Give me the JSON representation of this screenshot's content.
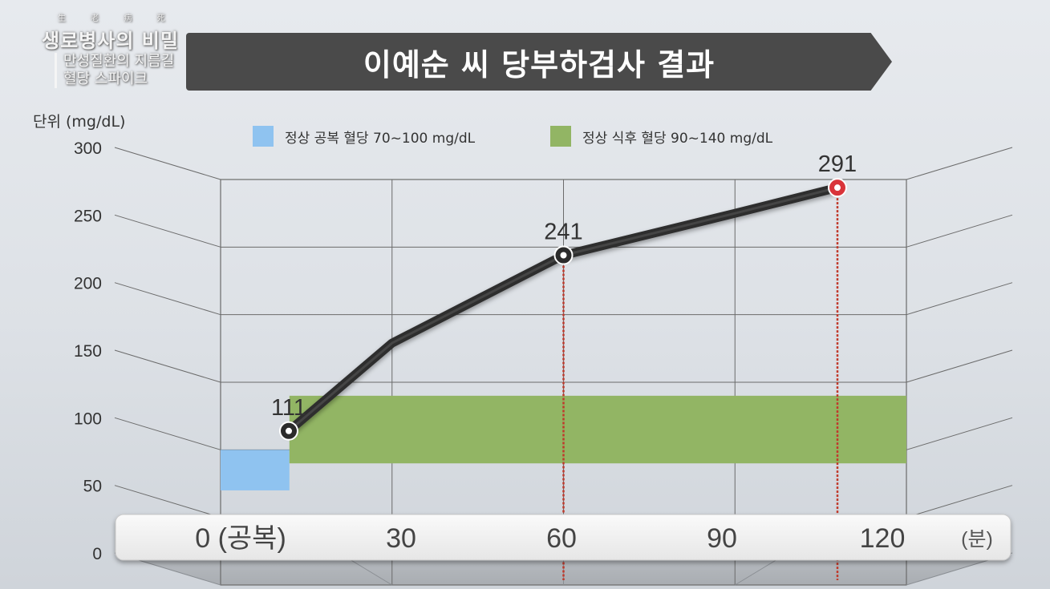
{
  "logo": {
    "small": "生 老 病 死",
    "title": "생로병사의 비밀",
    "sub1": "만성질환의 지름길",
    "sub2": "혈당 스파이크"
  },
  "banner_title": "이예순 씨 당부하검사 결과",
  "unit_label": "단위 (mg/dL)",
  "legend": [
    {
      "label": "정상 공복 혈당  70~100 mg/dL",
      "color": "#8fc3f0"
    },
    {
      "label": "정상 식후 혈당 90~140 mg/dL",
      "color": "#92b564"
    }
  ],
  "x_unit": "(분)",
  "chart_data": {
    "type": "line",
    "title": "이예순 씨 당부하검사 결과",
    "ylabel": "단위 (mg/dL)",
    "xlabel": "(분)",
    "ylim": [
      0,
      300
    ],
    "yticks": [
      0,
      50,
      100,
      150,
      200,
      250,
      300
    ],
    "categories": [
      "0 (공복)",
      "30",
      "60",
      "90",
      "120"
    ],
    "x": [
      0,
      30,
      60,
      90,
      120
    ],
    "series": [
      {
        "values": [
          111,
          176,
          241,
          272,
          291
        ]
      }
    ],
    "point_labels": [
      {
        "x": 0,
        "text": "111"
      },
      {
        "x": 60,
        "text": "241"
      },
      {
        "x": 120,
        "text": "291"
      }
    ],
    "bands": [
      {
        "name": "정상 공복 혈당",
        "y": [
          70,
          100
        ],
        "color": "#8fc3f0"
      },
      {
        "name": "정상 식후 혈당",
        "y": [
          90,
          140
        ],
        "color": "#92b564"
      }
    ],
    "grid": true,
    "legend_position": "top"
  }
}
